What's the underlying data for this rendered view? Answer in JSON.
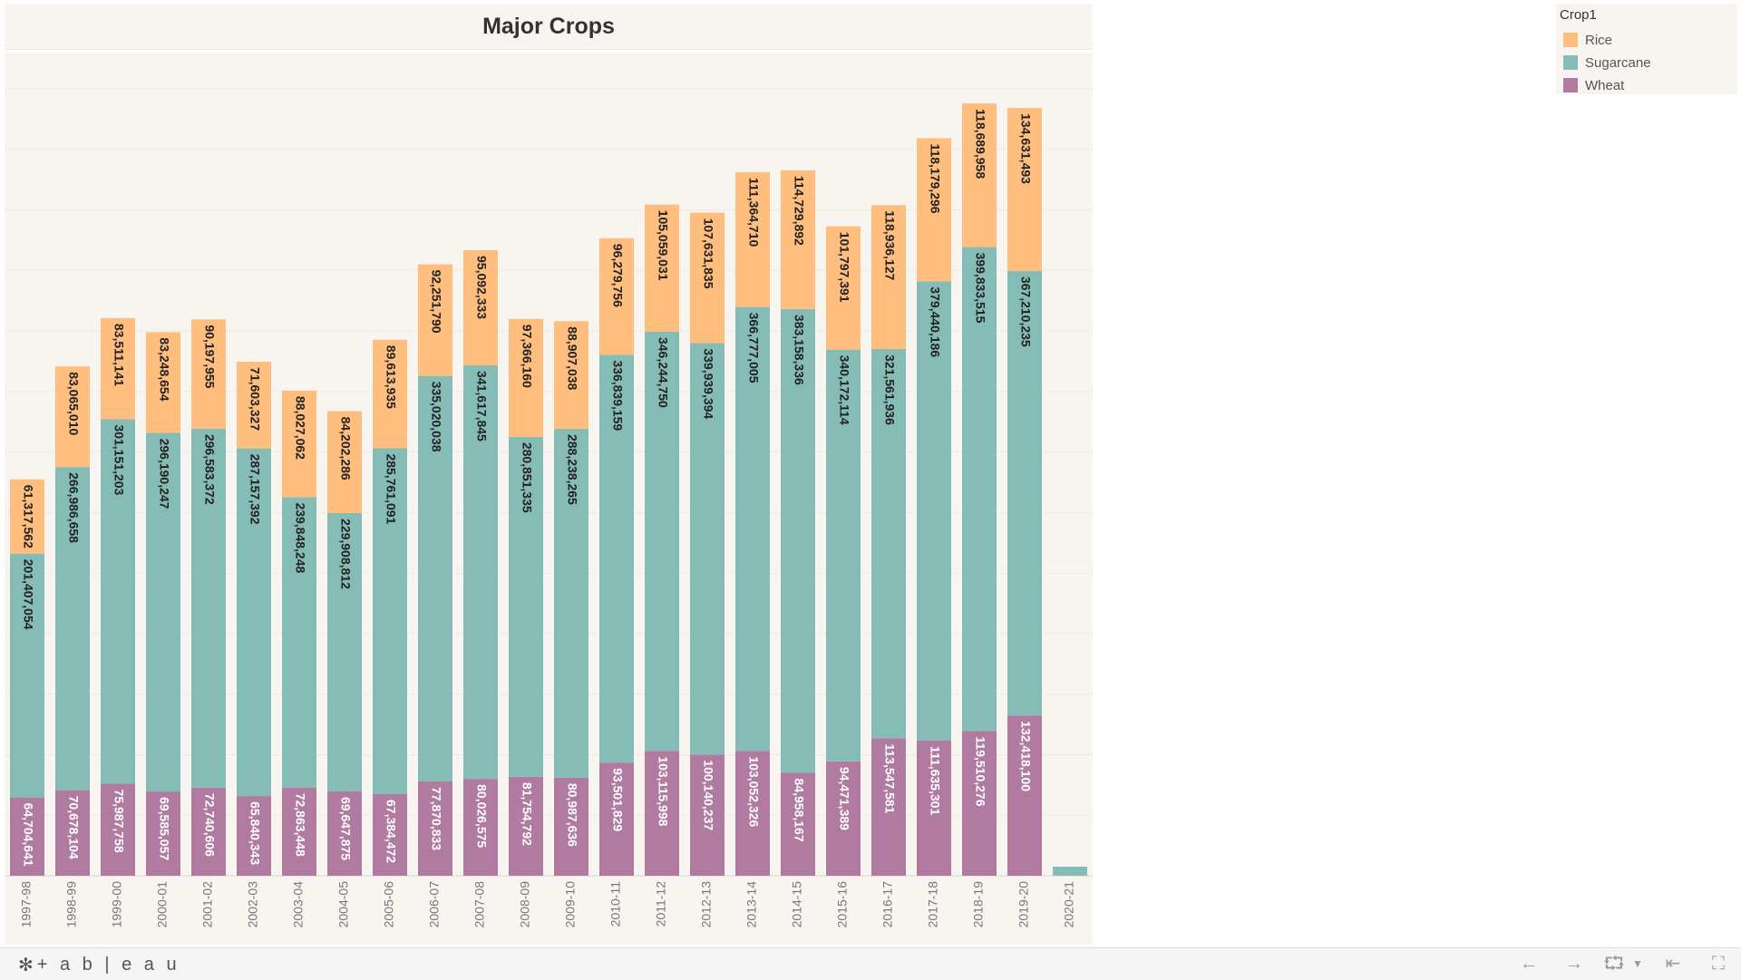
{
  "title": "Major Crops",
  "legend": {
    "title": "Crop1",
    "items": [
      {
        "label": "Rice",
        "color": "#ffbe7d"
      },
      {
        "label": "Sugarcane",
        "color": "#86bcb6"
      },
      {
        "label": "Wheat",
        "color": "#b07aa1"
      }
    ]
  },
  "chart_data": {
    "type": "bar",
    "stacked": true,
    "title": "Major Crops",
    "categories": [
      "1997-98",
      "1998-99",
      "1999-00",
      "2000-01",
      "2001-02",
      "2002-03",
      "2003-04",
      "2004-05",
      "2005-06",
      "2006-07",
      "2007-08",
      "2008-09",
      "2009-10",
      "2010-11",
      "2011-12",
      "2012-13",
      "2013-14",
      "2014-15",
      "2015-16",
      "2016-17",
      "2017-18",
      "2018-19",
      "2019-20",
      "2020-21"
    ],
    "series": [
      {
        "name": "Wheat",
        "color": "#b07aa1",
        "values": [
          64704641,
          70678104,
          75987758,
          69585057,
          72740606,
          65840343,
          72863448,
          69647875,
          67384472,
          77870833,
          80026575,
          81754792,
          80987636,
          93501829,
          103115998,
          100140237,
          103052326,
          84958167,
          94471389,
          113547581,
          111635301,
          119510276,
          132418100,
          null
        ],
        "labels": [
          "64,704,641",
          "70,678,104",
          "75,987,758",
          "69,585,057",
          "72,740,606",
          "65,840,343",
          "72,863,448",
          "69,647,875",
          "67,384,472",
          "77,870,833",
          "80,026,575",
          "81,754,792",
          "80,987,636",
          "93,501,829",
          "103,115,998",
          "100,140,237",
          "103,052,326",
          "84,958,167",
          "94,471,389",
          "113,547,581",
          "111,635,301",
          "119,510,276",
          "132,418,100",
          ""
        ]
      },
      {
        "name": "Sugarcane",
        "color": "#86bcb6",
        "values": [
          201407054,
          266986658,
          301151203,
          296190247,
          296583372,
          287157392,
          239848248,
          229908812,
          285761091,
          335020038,
          341617845,
          280851335,
          288238265,
          336839159,
          346244750,
          339939394,
          366777005,
          383158336,
          340172114,
          321561936,
          379440186,
          399833515,
          367210235,
          7500000
        ],
        "labels": [
          "201,407,054",
          "266,986,658",
          "301,151,203",
          "296,190,247",
          "296,583,372",
          "287,157,392",
          "239,848,248",
          "229,908,812",
          "285,761,091",
          "335,020,038",
          "341,617,845",
          "280,851,335",
          "288,238,265",
          "336,839,159",
          "346,244,750",
          "339,939,394",
          "366,777,005",
          "383,158,336",
          "340,172,114",
          "321,561,936",
          "379,440,186",
          "399,833,515",
          "367,210,235",
          ""
        ]
      },
      {
        "name": "Rice",
        "color": "#ffbe7d",
        "values": [
          61317562,
          83065010,
          83511141,
          83248654,
          90197955,
          71603327,
          88027062,
          84202286,
          89613935,
          92251790,
          95092333,
          97366160,
          88907038,
          96279756,
          105059031,
          107631835,
          111364710,
          114729892,
          101797391,
          118936127,
          118179296,
          118689958,
          134631493,
          null
        ],
        "labels": [
          "61,317,562",
          "83,065,010",
          "83,511,141",
          "83,248,654",
          "90,197,955",
          "71,603,327",
          "88,027,062",
          "84,202,286",
          "89,613,935",
          "92,251,790",
          "95,092,333",
          "97,366,160",
          "88,907,038",
          "96,279,756",
          "105,059,031",
          "107,631,835",
          "111,364,710",
          "114,729,892",
          "101,797,391",
          "118,936,127",
          "118,179,296",
          "118,689,958",
          "134,631,493",
          ""
        ]
      }
    ],
    "ylim": [
      0,
      680000000
    ],
    "grid": true,
    "legend_position": "top-right",
    "xlabel": "",
    "ylabel": ""
  },
  "toolbar": {
    "brand": "+ a b | e a u",
    "undo_icon": "undo-icon",
    "redo_icon": "redo-icon",
    "revert_icon": "revert-icon",
    "reset_icon": "reset-icon",
    "fullscreen_icon": "fullscreen-icon"
  }
}
